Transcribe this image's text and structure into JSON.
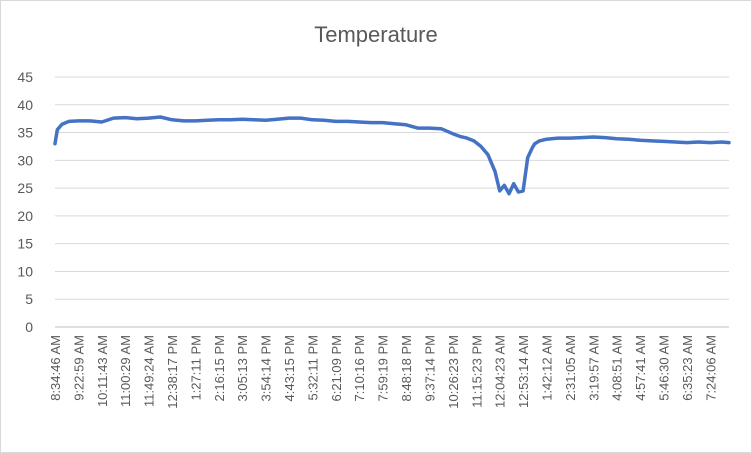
{
  "chart_data": {
    "type": "line",
    "title": "Temperature",
    "xlabel": "",
    "ylabel": "",
    "ylim": [
      0,
      45
    ],
    "yticks": [
      0,
      5,
      10,
      15,
      20,
      25,
      30,
      35,
      40,
      45
    ],
    "grid": "horizontal",
    "legend": "none",
    "line_color": "#4472c4",
    "x_tick_labels": [
      "8:34:46 AM",
      "9:22:59 AM",
      "10:11:43 AM",
      "11:00:29 AM",
      "11:49:24 AM",
      "12:38:17 PM",
      "1:27:11 PM",
      "2:16:15 PM",
      "3:05:13 PM",
      "3:54:14 PM",
      "4:43:15 PM",
      "5:32:11 PM",
      "6:21:09 PM",
      "7:10:16 PM",
      "7:59:19 PM",
      "8:48:18 PM",
      "9:37:14 PM",
      "10:26:23 PM",
      "11:15:23 PM",
      "12:04:23 AM",
      "12:53:14 AM",
      "1:42:12 AM",
      "2:31:05 AM",
      "3:19:57 AM",
      "4:08:51 AM",
      "4:57:41 AM",
      "5:46:30 AM",
      "6:35:23 AM",
      "7:24:06 AM"
    ],
    "series": [
      {
        "x": [
          0,
          0.1,
          0.3,
          0.6,
          1,
          1.5,
          2,
          2.5,
          3,
          3.5,
          4,
          4.5,
          5,
          5.5,
          6,
          6.5,
          7,
          7.5,
          8,
          8.5,
          9,
          9.5,
          10,
          10.5,
          11,
          11.5,
          12,
          12.5,
          13,
          13.5,
          14,
          14.5,
          15,
          15.5,
          16,
          16.5,
          17,
          17.3,
          17.6,
          17.9,
          18.2,
          18.5,
          18.8,
          19.0,
          19.2,
          19.4,
          19.6,
          19.8,
          20.0,
          20.2,
          20.4,
          20.5,
          20.7,
          21,
          21.5,
          22,
          22.5,
          23,
          23.5,
          24,
          24.5,
          25,
          25.5,
          26,
          26.5,
          27,
          27.5,
          28,
          28.5,
          28.8
        ],
        "values": [
          33,
          35.5,
          36.5,
          37,
          37.1,
          37.1,
          36.9,
          37.6,
          37.7,
          37.5,
          37.6,
          37.8,
          37.3,
          37.1,
          37.1,
          37.2,
          37.3,
          37.3,
          37.4,
          37.3,
          37.2,
          37.4,
          37.6,
          37.6,
          37.3,
          37.2,
          37.0,
          37.0,
          36.9,
          36.8,
          36.8,
          36.6,
          36.4,
          35.8,
          35.8,
          35.7,
          34.8,
          34.3,
          34.0,
          33.5,
          32.5,
          31.0,
          28.0,
          24.5,
          25.5,
          24.0,
          25.8,
          24.3,
          24.5,
          30.5,
          32.3,
          33.0,
          33.5,
          33.8,
          34.0,
          34.0,
          34.1,
          34.2,
          34.1,
          33.9,
          33.8,
          33.6,
          33.5,
          33.4,
          33.3,
          33.2,
          33.3,
          33.2,
          33.3,
          33.2
        ]
      }
    ]
  }
}
